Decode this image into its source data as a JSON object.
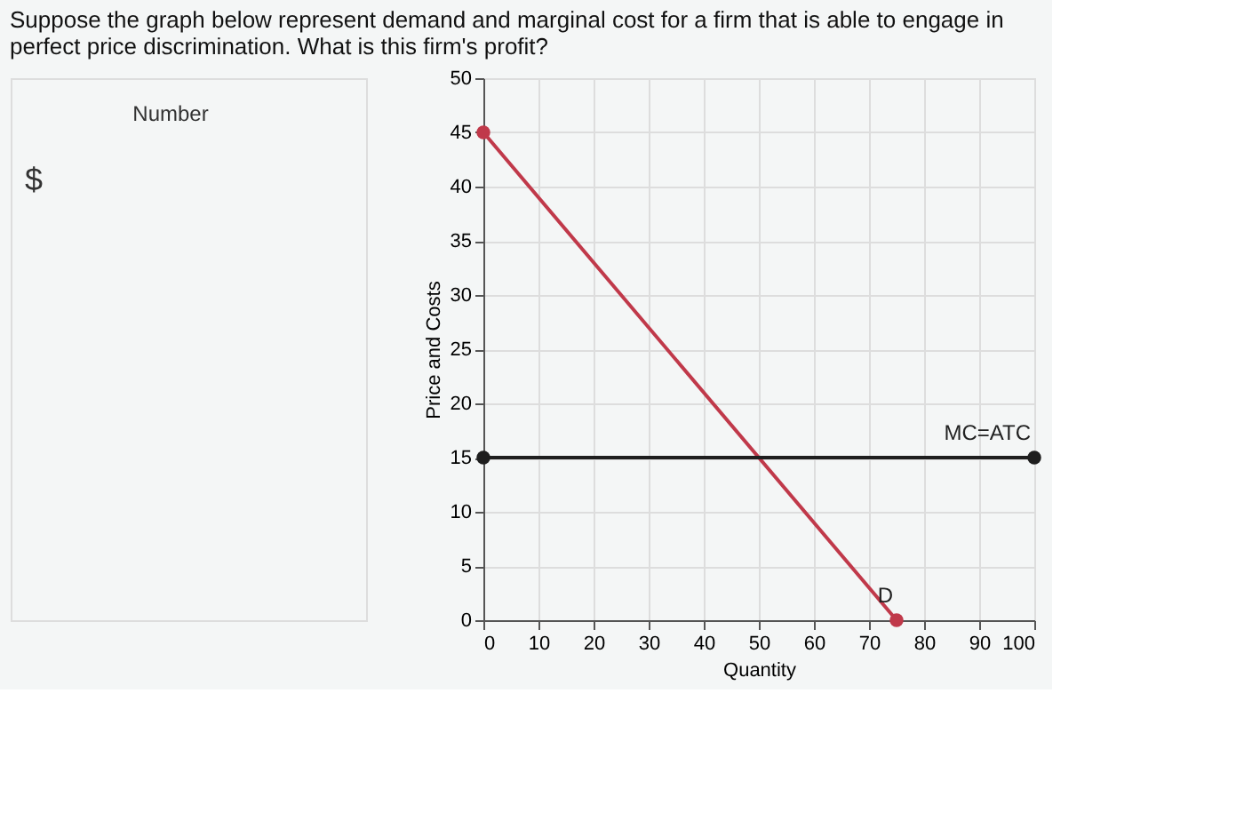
{
  "chart_data": {
    "type": "line",
    "title": "Suppose  the graph below represent demand and marginal cost for a firm that is able to engage in perfect price discrimination. What is this firm's profit?",
    "xlabel": "Quantity",
    "ylabel": "Price and Costs",
    "annotations": [
      "Number",
      "$"
    ],
    "series": [
      {
        "name": "D",
        "color": "#c0394a",
        "x": [
          0,
          75
        ],
        "values": [
          45,
          0
        ]
      },
      {
        "name": "MC=ATC",
        "color": "#1e1e1e",
        "x": [
          0,
          100
        ],
        "values": [
          15,
          15
        ]
      }
    ],
    "xlim": [
      0,
      100
    ],
    "xticks": [
      0,
      10,
      20,
      30,
      40,
      50,
      60,
      70,
      80,
      90,
      100
    ],
    "ylim": [
      0,
      50
    ],
    "yticks": [
      0,
      5,
      10,
      15,
      20,
      25,
      30,
      35,
      40,
      45,
      50
    ],
    "grid": true,
    "marker": "circle",
    "line_style": "solid"
  }
}
